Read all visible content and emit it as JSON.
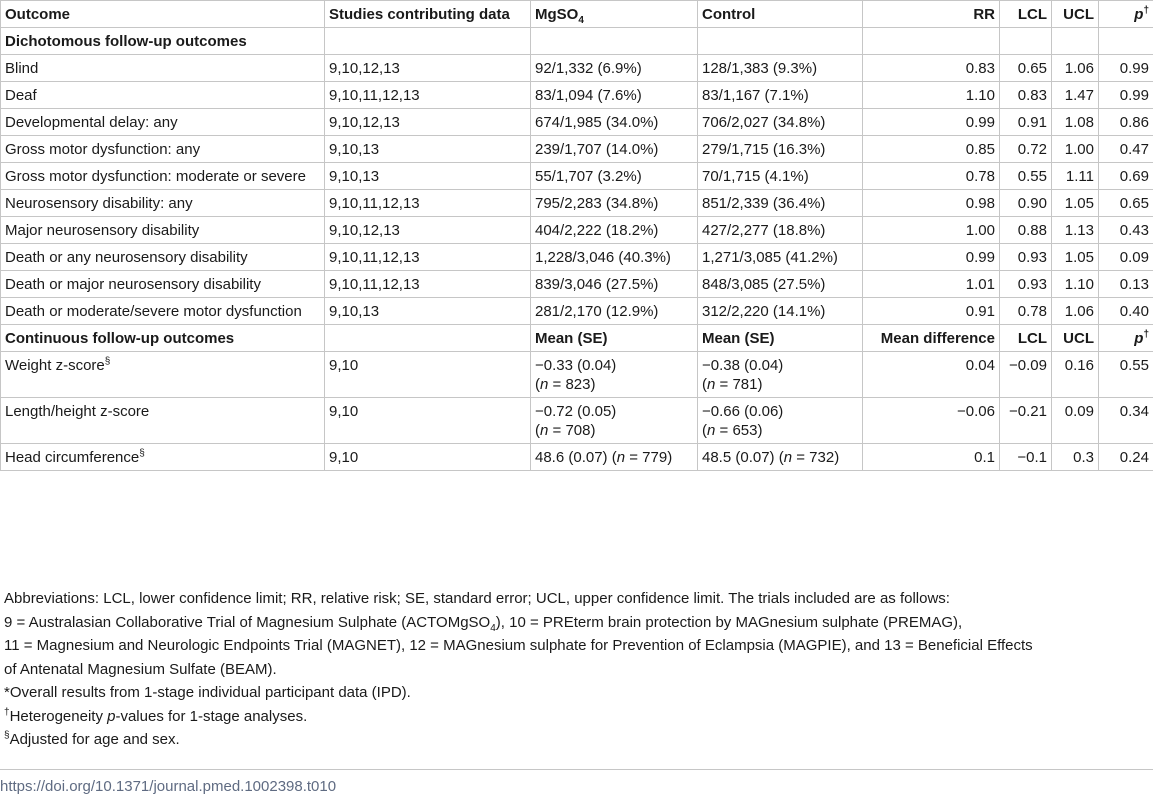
{
  "headers": {
    "outcome": "Outcome",
    "studies": "Studies contributing data",
    "mg_prefix": "MgSO",
    "mg_sub": "4",
    "control": "Control",
    "rr": "RR",
    "lcl": "LCL",
    "ucl": "UCL",
    "p": "p",
    "p_sup": "†"
  },
  "section1": {
    "title": "Dichotomous follow-up outcomes"
  },
  "dichotomous": [
    {
      "outcome": "Blind",
      "studies": "9,10,12,13",
      "mg": "92/1,332 (6.9%)",
      "control": "128/1,383 (9.3%)",
      "rr": "0.83",
      "lcl": "0.65",
      "ucl": "1.06",
      "p": "0.99"
    },
    {
      "outcome": "Deaf",
      "studies": "9,10,11,12,13",
      "mg": "83/1,094 (7.6%)",
      "control": "83/1,167 (7.1%)",
      "rr": "1.10",
      "lcl": "0.83",
      "ucl": "1.47",
      "p": "0.99"
    },
    {
      "outcome": "Developmental delay: any",
      "studies": "9,10,12,13",
      "mg": "674/1,985 (34.0%)",
      "control": "706/2,027 (34.8%)",
      "rr": "0.99",
      "lcl": "0.91",
      "ucl": "1.08",
      "p": "0.86"
    },
    {
      "outcome": "Gross motor dysfunction: any",
      "studies": "9,10,13",
      "mg": "239/1,707 (14.0%)",
      "control": "279/1,715 (16.3%)",
      "rr": "0.85",
      "lcl": "0.72",
      "ucl": "1.00",
      "p": "0.47"
    },
    {
      "outcome": "Gross motor dysfunction: moderate or severe",
      "studies": "9,10,13",
      "mg": "55/1,707 (3.2%)",
      "control": "70/1,715 (4.1%)",
      "rr": "0.78",
      "lcl": "0.55",
      "ucl": "1.11",
      "p": "0.69"
    },
    {
      "outcome": "Neurosensory disability: any",
      "studies": "9,10,11,12,13",
      "mg": "795/2,283 (34.8%)",
      "control": "851/2,339 (36.4%)",
      "rr": "0.98",
      "lcl": "0.90",
      "ucl": "1.05",
      "p": "0.65"
    },
    {
      "outcome": "Major neurosensory disability",
      "studies": "9,10,12,13",
      "mg": "404/2,222 (18.2%)",
      "control": "427/2,277 (18.8%)",
      "rr": "1.00",
      "lcl": "0.88",
      "ucl": "1.13",
      "p": "0.43"
    },
    {
      "outcome": "Death or any neurosensory disability",
      "studies": "9,10,11,12,13",
      "mg": "1,228/3,046 (40.3%)",
      "control": "1,271/3,085 (41.2%)",
      "rr": "0.99",
      "lcl": "0.93",
      "ucl": "1.05",
      "p": "0.09"
    },
    {
      "outcome": "Death or major neurosensory disability",
      "studies": "9,10,11,12,13",
      "mg": "839/3,046 (27.5%)",
      "control": "848/3,085 (27.5%)",
      "rr": "1.01",
      "lcl": "0.93",
      "ucl": "1.10",
      "p": "0.13"
    },
    {
      "outcome": "Death or moderate/severe motor dysfunction",
      "studies": "9,10,13",
      "mg": "281/2,170 (12.9%)",
      "control": "312/2,220 (14.1%)",
      "rr": "0.91",
      "lcl": "0.78",
      "ucl": "1.06",
      "p": "0.40"
    }
  ],
  "section2": {
    "title": "Continuous follow-up outcomes",
    "mg": "Mean (SE)",
    "control": "Mean (SE)",
    "diff": "Mean difference",
    "lcl": "LCL",
    "ucl": "UCL",
    "p": "p",
    "p_sup": "†"
  },
  "continuous": [
    {
      "outcome": "Weight z-score",
      "sup": "§",
      "studies": "9,10",
      "mg_val": "−0.33 (0.04)",
      "mg_n": "823",
      "control_val": "−0.38 (0.04)",
      "control_n": "781",
      "diff": "0.04",
      "lcl": "−0.09",
      "ucl": "0.16",
      "p": "0.55"
    },
    {
      "outcome": "Length/height z-score",
      "sup": "",
      "studies": "9,10",
      "mg_val": "−0.72 (0.05)",
      "mg_n": "708",
      "control_val": "−0.66 (0.06)",
      "control_n": "653",
      "diff": "−0.06",
      "lcl": "−0.21",
      "ucl": "0.09",
      "p": "0.34"
    },
    {
      "outcome": "Head circumference",
      "sup": "§",
      "studies": "9,10",
      "mg_val": "48.6 (0.07)",
      "mg_n": "779",
      "control_val": "48.5 (0.07)",
      "control_n": "732",
      "diff": "0.1",
      "lcl": "−0.1",
      "ucl": "0.3",
      "p": "0.24"
    }
  ],
  "n_label": "n",
  "notes": {
    "abbrev_a": "Abbreviations: LCL, lower confidence limit; RR, relative risk; SE, standard error; UCL, upper confidence limit. The trials included are as follows:",
    "abbrev_b1": "9 = Australasian Collaborative Trial of Magnesium Sulphate (ACTOMgSO",
    "abbrev_b_sub": "4",
    "abbrev_b2": "), 10 = PREterm brain protection by MAGnesium sulphate (PREMAG),",
    "abbrev_c": "11 = Magnesium and Neurologic Endpoints Trial (MAGNET), 12 = MAGnesium sulphate for Prevention of Eclampsia (MAGPIE), and 13 = Beneficial Effects",
    "abbrev_d": "of Antenatal Magnesium Sulfate (BEAM).",
    "star": "*Overall results from 1-stage individual participant data (IPD).",
    "dagger_sym": "†",
    "dagger_a": "Heterogeneity ",
    "dagger_p": "p",
    "dagger_b": "-values for 1-stage analyses.",
    "section_sym": "§",
    "section_text": "Adjusted for age and sex."
  },
  "doi": "https://doi.org/10.1371/journal.pmed.1002398.t010"
}
